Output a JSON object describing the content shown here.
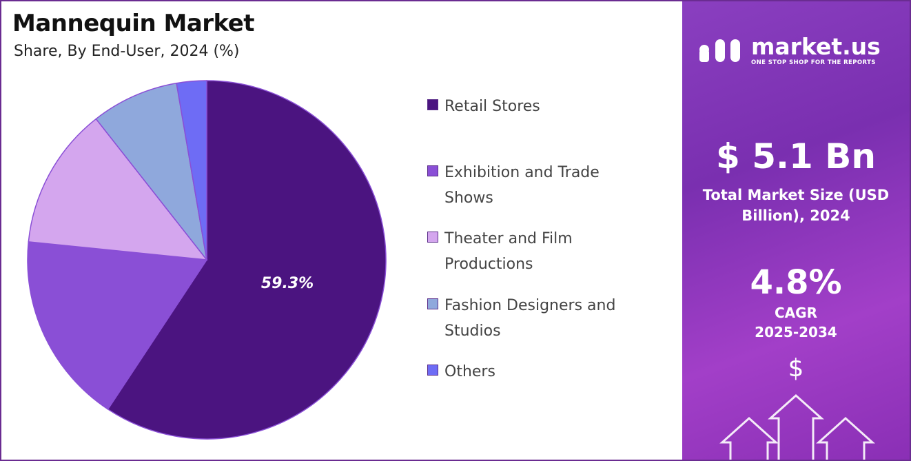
{
  "chart_data": {
    "type": "pie",
    "title": "Mannequin Market",
    "subtitle": "Share, By End-User, 2024 (%)",
    "categories": [
      "Retail Stores",
      "Exhibition and Trade Shows",
      "Theater and Film Productions",
      "Fashion Designers and Studios",
      "Others"
    ],
    "values": [
      59.3,
      17.3,
      12.8,
      7.9,
      2.7
    ],
    "value_labels": [
      "59.3%",
      null,
      null,
      null,
      null
    ],
    "colors": [
      "#4b1480",
      "#8a4fd6",
      "#d4a6ee",
      "#8fa8dc",
      "#6e6cf5"
    ]
  },
  "sidebar": {
    "brand": "market.us",
    "tagline": "ONE STOP SHOP FOR THE REPORTS",
    "market_size": "$ 5.1 Bn",
    "market_size_label": "Total Market Size (USD Billion), 2024",
    "cagr": "4.8%",
    "cagr_label": "CAGR",
    "cagr_period": "2025-2034",
    "icon": "$"
  }
}
